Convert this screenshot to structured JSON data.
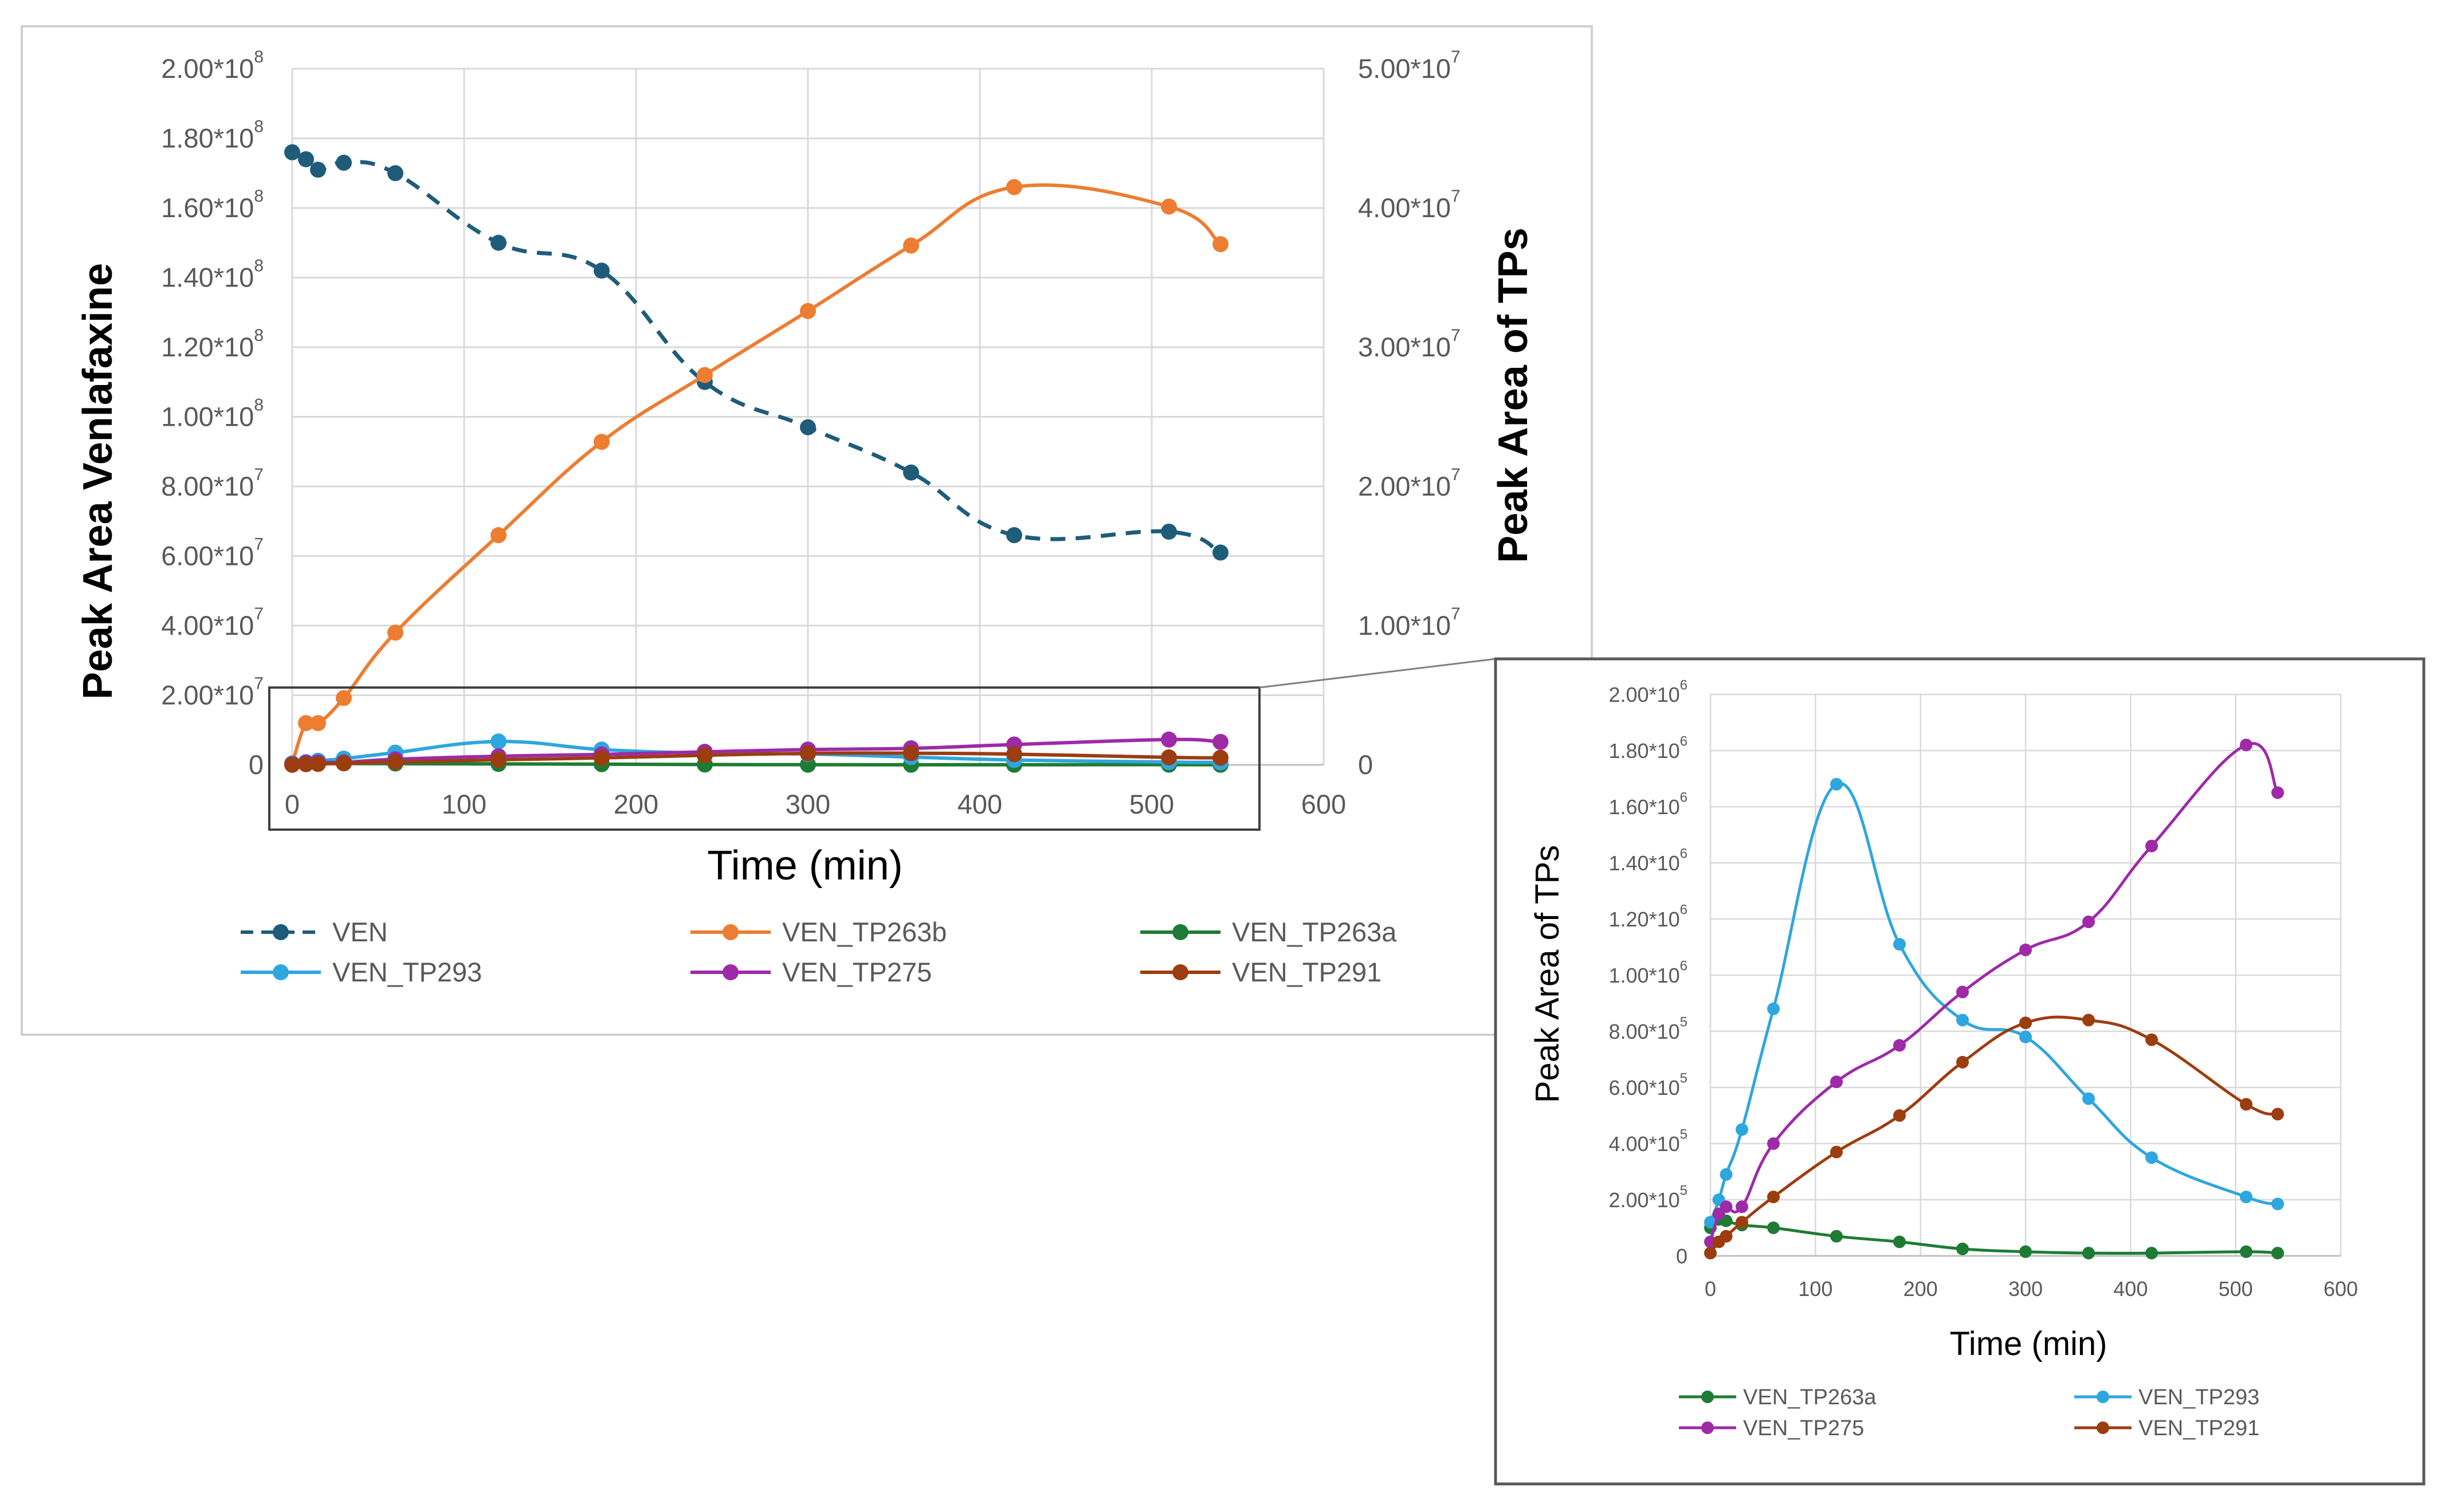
{
  "chart_data": [
    {
      "type": "line",
      "title": "",
      "xlabel": "Time (min)",
      "ylabel": "Peak Area Venlafaxine",
      "y2label": "Peak Area  of TPs",
      "xlim": [
        0,
        600
      ],
      "ylim": [
        0,
        200000000
      ],
      "y2lim": [
        0,
        50000000
      ],
      "grid": true,
      "legend_position": "bottom",
      "x_ticks": [
        "0",
        "100",
        "200",
        "300",
        "400",
        "500",
        "600"
      ],
      "y_ticks": [
        "0",
        "2.00*10",
        "4.00*10",
        "6.00*10",
        "8.00*10",
        "1.00*10",
        "1.20*10",
        "1.40*10",
        "1.60*10",
        "1.80*10",
        "2.00*10"
      ],
      "y_tick_exponents": [
        "",
        "7",
        "7",
        "7",
        "7",
        "8",
        "8",
        "8",
        "8",
        "8",
        "8"
      ],
      "y2_ticks": [
        "0",
        "1.00*10",
        "2.00*10",
        "3.00*10",
        "4.00*10",
        "5.00*10"
      ],
      "y2_tick_exponents": [
        "",
        "7",
        "7",
        "7",
        "7",
        "7"
      ],
      "series": [
        {
          "name": "VEN",
          "axis": "left",
          "color": "#1f5c7a",
          "dashed": true,
          "x": [
            0,
            8,
            15,
            30,
            60,
            120,
            180,
            240,
            300,
            360,
            420,
            510,
            540
          ],
          "values": [
            176000000,
            174000000,
            171000000,
            173000000,
            170000000,
            150000000,
            142000000,
            110000000,
            97000000,
            84000000,
            66000000,
            67000000,
            61000000
          ]
        },
        {
          "name": "VEN_TP263b",
          "axis": "right",
          "color": "#ed7d31",
          "dashed": false,
          "x": [
            0,
            8,
            15,
            30,
            60,
            120,
            180,
            240,
            300,
            360,
            420,
            510,
            540
          ],
          "values": [
            100000,
            3000000,
            3000000,
            4800000,
            9500000,
            16500000,
            23200000,
            28000000,
            32600000,
            37300000,
            41500000,
            40100000,
            37400000
          ]
        },
        {
          "name": "VEN_TP263a",
          "axis": "right",
          "color": "#1e7b34",
          "dashed": false,
          "x": [
            0,
            8,
            15,
            30,
            60,
            120,
            180,
            240,
            300,
            360,
            420,
            510,
            540
          ],
          "values": [
            100000,
            130000,
            125000,
            110000,
            100000,
            70000,
            50000,
            25000,
            15000,
            10000,
            10000,
            15000,
            10000
          ]
        },
        {
          "name": "VEN_TP293",
          "axis": "right",
          "color": "#2ea6de",
          "dashed": false,
          "x": [
            0,
            8,
            15,
            30,
            60,
            120,
            180,
            240,
            300,
            360,
            420,
            510,
            540
          ],
          "values": [
            100000,
            200000,
            300000,
            450000,
            880000,
            1680000,
            1100000,
            850000,
            780000,
            560000,
            350000,
            200000,
            180000
          ]
        },
        {
          "name": "VEN_TP275",
          "axis": "right",
          "color": "#9e2aa8",
          "dashed": false,
          "x": [
            0,
            8,
            15,
            30,
            60,
            120,
            180,
            240,
            300,
            360,
            420,
            510,
            540
          ],
          "values": [
            50000,
            150000,
            180000,
            180000,
            400000,
            620000,
            750000,
            940000,
            1100000,
            1190000,
            1460000,
            1820000,
            1650000
          ]
        },
        {
          "name": "VEN_TP291",
          "axis": "right",
          "color": "#9c3d10",
          "dashed": false,
          "x": [
            0,
            8,
            15,
            30,
            60,
            120,
            180,
            240,
            300,
            360,
            420,
            510,
            540
          ],
          "values": [
            10000,
            50000,
            70000,
            120000,
            210000,
            370000,
            500000,
            690000,
            830000,
            840000,
            770000,
            540000,
            510000
          ]
        }
      ]
    },
    {
      "type": "line",
      "title": "",
      "xlabel": "Time (min)",
      "ylabel": "Peak Area of TPs",
      "xlim": [
        0,
        600
      ],
      "ylim": [
        0,
        2000000
      ],
      "grid": true,
      "legend_position": "bottom",
      "x_ticks": [
        "0",
        "100",
        "200",
        "300",
        "400",
        "500",
        "600"
      ],
      "y_ticks": [
        "0",
        "2.00*10",
        "4.00*10",
        "6.00*10",
        "8.00*10",
        "1.00*10",
        "1.20*10",
        "1.40*10",
        "1.60*10",
        "1.80*10",
        "2.00*10"
      ],
      "y_tick_exponents": [
        "",
        "5",
        "5",
        "5",
        "5",
        "6",
        "6",
        "6",
        "6",
        "6",
        "6"
      ],
      "series": [
        {
          "name": "VEN_TP263a",
          "color": "#1e7b34",
          "x": [
            0,
            8,
            15,
            30,
            60,
            120,
            180,
            240,
            300,
            360,
            420,
            510,
            540
          ],
          "values": [
            100000,
            130000,
            125000,
            110000,
            100000,
            70000,
            50000,
            25000,
            15000,
            10000,
            10000,
            15000,
            10000
          ]
        },
        {
          "name": "VEN_TP293",
          "color": "#2ea6de",
          "x": [
            0,
            8,
            15,
            30,
            60,
            120,
            180,
            240,
            300,
            360,
            420,
            510,
            540
          ],
          "values": [
            120000,
            200000,
            290000,
            450000,
            880000,
            1680000,
            1110000,
            840000,
            780000,
            560000,
            350000,
            210000,
            185000
          ]
        },
        {
          "name": "VEN_TP275",
          "color": "#9e2aa8",
          "x": [
            0,
            8,
            15,
            30,
            60,
            120,
            180,
            240,
            300,
            360,
            420,
            510,
            540
          ],
          "values": [
            50000,
            150000,
            175000,
            175000,
            400000,
            620000,
            750000,
            940000,
            1090000,
            1190000,
            1460000,
            1820000,
            1650000
          ]
        },
        {
          "name": "VEN_TP291",
          "color": "#9c3d10",
          "x": [
            0,
            8,
            15,
            30,
            60,
            120,
            180,
            240,
            300,
            360,
            420,
            510,
            540
          ],
          "values": [
            10000,
            50000,
            70000,
            120000,
            210000,
            370000,
            500000,
            690000,
            830000,
            840000,
            770000,
            540000,
            505000
          ]
        }
      ]
    }
  ]
}
